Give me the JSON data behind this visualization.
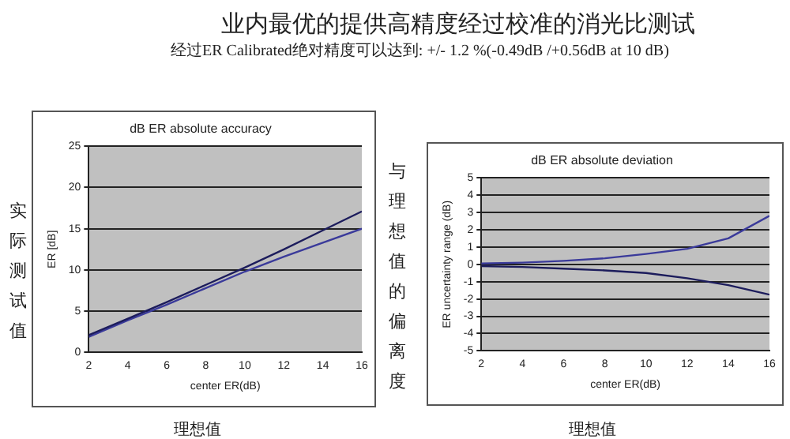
{
  "chart_data": [
    {
      "type": "line",
      "title": "dB ER absolute accuracy",
      "xlabel": "center ER(dB)",
      "ylabel": "ER [dB]",
      "annotations": [
        "业内最优的提供高精度经过校准的消光比测试",
        "经过ER Calibrated绝对精度可以达到: +/- 1.2 %(-0.49dB /+0.56dB at 10 dB)",
        "实际测试值",
        "理想值"
      ],
      "x": [
        2,
        4,
        6,
        8,
        10,
        12,
        14,
        16
      ],
      "series": [
        {
          "color": "#1c1c5c",
          "values": [
            2.1,
            4.1,
            6.1,
            8.2,
            10.3,
            12.5,
            14.8,
            17.1
          ]
        },
        {
          "color": "#3a3a9a",
          "values": [
            1.9,
            3.9,
            5.8,
            7.8,
            9.8,
            11.6,
            13.3,
            15
          ]
        }
      ],
      "xlim": [
        2,
        16
      ],
      "xticks": [
        2,
        4,
        6,
        8,
        10,
        12,
        14,
        16
      ],
      "ylim": [
        0,
        25
      ],
      "yticks": [
        0,
        5,
        10,
        15,
        20,
        25
      ],
      "grid": "y",
      "legend": false,
      "marker": "none"
    },
    {
      "type": "line",
      "title": "dB ER absolute deviation",
      "xlabel": "center ER(dB)",
      "ylabel": "ER uncertainty range (dB)",
      "annotations": [
        "与理想值的偏离度",
        "理想值"
      ],
      "x": [
        2,
        4,
        6,
        8,
        10,
        12,
        14,
        16
      ],
      "series": [
        {
          "color": "#3a3a9a",
          "values": [
            0.05,
            0.1,
            0.2,
            0.35,
            0.6,
            0.9,
            1.5,
            2.8
          ]
        },
        {
          "color": "#1c1c5c",
          "values": [
            -0.1,
            -0.15,
            -0.25,
            -0.35,
            -0.5,
            -0.8,
            -1.2,
            -1.75
          ]
        }
      ],
      "xlim": [
        2,
        16
      ],
      "xticks": [
        2,
        4,
        6,
        8,
        10,
        12,
        14,
        16
      ],
      "ylim": [
        -5,
        5
      ],
      "yticks": [
        -5,
        -4,
        -3,
        -2,
        -1,
        0,
        1,
        2,
        3,
        4,
        5
      ],
      "grid": "y",
      "legend": false,
      "marker": "none"
    }
  ]
}
